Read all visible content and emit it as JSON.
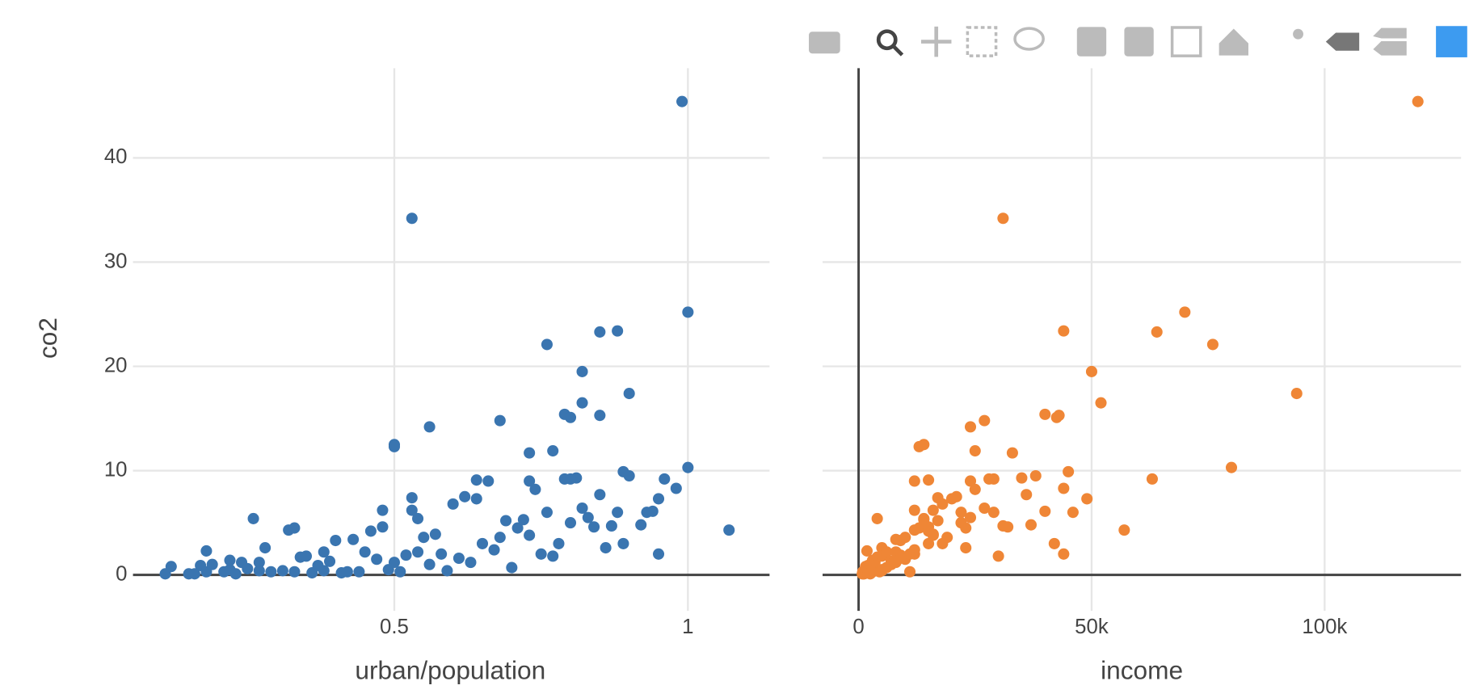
{
  "chart_data": [
    {
      "type": "scatter",
      "x_label": "urban/population",
      "y_label": "co2",
      "color": "#3a75b0",
      "xlim": [
        0.055,
        1.139
      ],
      "ylim": [
        -3.45,
        48.6
      ],
      "xticks": [
        0.5,
        1
      ],
      "yticks": [
        0,
        10,
        20,
        30,
        40
      ],
      "grid": true,
      "x": [
        0.11,
        0.12,
        0.15,
        0.16,
        0.17,
        0.18,
        0.18,
        0.19,
        0.21,
        0.22,
        0.22,
        0.23,
        0.24,
        0.25,
        0.26,
        0.27,
        0.27,
        0.28,
        0.29,
        0.31,
        0.32,
        0.33,
        0.33,
        0.34,
        0.35,
        0.36,
        0.37,
        0.38,
        0.38,
        0.39,
        0.4,
        0.41,
        0.42,
        0.43,
        0.44,
        0.45,
        0.46,
        0.47,
        0.48,
        0.48,
        0.49,
        0.5,
        0.51,
        0.52,
        0.53,
        0.53,
        0.54,
        0.54,
        0.55,
        0.56,
        0.57,
        0.58,
        0.59,
        0.6,
        0.61,
        0.62,
        0.63,
        0.64,
        0.65,
        0.66,
        0.67,
        0.68,
        0.69,
        0.7,
        0.71,
        0.72,
        0.73,
        0.74,
        0.75,
        0.76,
        0.77,
        0.78,
        0.79,
        0.8,
        0.81,
        0.82,
        0.83,
        0.84,
        0.85,
        0.86,
        0.87,
        0.88,
        0.89,
        0.92,
        0.93,
        0.99,
        0.53,
        1.0,
        0.76,
        0.85,
        0.88,
        0.82,
        0.9,
        0.82,
        0.79,
        0.85,
        0.8,
        0.68,
        0.56,
        0.5,
        0.5,
        0.77,
        0.73,
        1.0,
        0.89,
        0.9,
        0.96,
        0.8,
        0.73,
        0.64,
        1.07,
        0.95,
        0.98,
        0.94,
        0.95
      ],
      "values": [
        0.1,
        0.8,
        0.1,
        0.1,
        0.9,
        2.3,
        0.3,
        1.0,
        0.3,
        0.5,
        1.4,
        0.1,
        1.2,
        0.6,
        5.4,
        1.2,
        0.4,
        2.6,
        0.3,
        0.4,
        4.3,
        4.5,
        0.3,
        1.7,
        1.8,
        0.2,
        0.9,
        2.2,
        0.4,
        1.3,
        3.3,
        0.2,
        0.3,
        3.4,
        0.3,
        2.2,
        4.2,
        1.5,
        6.2,
        4.6,
        0.5,
        1.2,
        0.3,
        1.9,
        7.4,
        6.2,
        5.4,
        2.2,
        3.6,
        1.0,
        3.9,
        2.0,
        0.4,
        6.8,
        1.6,
        7.5,
        1.2,
        7.3,
        3.0,
        9.0,
        2.4,
        3.6,
        5.2,
        0.7,
        4.5,
        5.3,
        3.8,
        8.2,
        2.0,
        6.0,
        1.8,
        3.0,
        9.2,
        5.0,
        9.3,
        6.4,
        5.5,
        4.6,
        7.7,
        2.6,
        4.7,
        6.0,
        3.0,
        4.8,
        6.0,
        45.4,
        34.2,
        25.2,
        22.1,
        23.3,
        23.4,
        19.5,
        17.4,
        16.5,
        15.4,
        15.3,
        15.1,
        14.8,
        14.2,
        12.5,
        12.3,
        11.9,
        11.7,
        10.3,
        9.9,
        9.5,
        9.2,
        9.2,
        9.0,
        9.1,
        4.3,
        7.3,
        8.3,
        6.1,
        2.0
      ]
    },
    {
      "type": "scatter",
      "x_label": "income",
      "color": "#ef8636",
      "xlim": [
        -7724,
        129268
      ],
      "ylim": [
        -3.45,
        48.6
      ],
      "xticks": [
        0,
        {
          "value": 50000,
          "label": "50k"
        },
        {
          "value": 100000,
          "label": "100k"
        }
      ],
      "grid": true,
      "x": [
        1000,
        1500,
        800,
        1200,
        2000,
        1800,
        900,
        2500,
        1500,
        2000,
        3000,
        2500,
        3500,
        2000,
        4000,
        3000,
        2000,
        5000,
        1500,
        3000,
        12000,
        13000,
        2500,
        4000,
        5000,
        2000,
        3500,
        6000,
        2000,
        7000,
        9000,
        2500,
        3000,
        8000,
        4500,
        6000,
        15000,
        10000,
        16000,
        15000,
        5000,
        7500,
        11000,
        9000,
        17000,
        12000,
        14000,
        8000,
        10000,
        7000,
        16000,
        12000,
        5000,
        18000,
        9000,
        21000,
        8000,
        20000,
        15000,
        24000,
        12000,
        19000,
        17000,
        6000,
        23000,
        14000,
        16000,
        25000,
        11000,
        22000,
        30000,
        18000,
        28000,
        22000,
        35000,
        27000,
        24000,
        32000,
        36000,
        23000,
        31000,
        29000,
        42000,
        37000,
        46000,
        120000,
        31000,
        70000,
        76000,
        64000,
        44000,
        50000,
        94000,
        52000,
        40000,
        43000,
        42500,
        27000,
        24000,
        14000,
        13000,
        25000,
        33000,
        80000,
        45000,
        38000,
        63000,
        29000,
        12000,
        15000,
        57000,
        49000,
        44000,
        40000,
        44000
      ],
      "values": [
        0.1,
        0.8,
        0.1,
        0.1,
        0.9,
        2.3,
        0.3,
        1.0,
        0.3,
        0.5,
        1.4,
        0.1,
        1.2,
        0.6,
        5.4,
        1.2,
        0.4,
        2.6,
        0.3,
        0.4,
        4.3,
        4.5,
        0.3,
        1.7,
        1.8,
        0.2,
        0.9,
        2.2,
        0.4,
        1.3,
        3.3,
        0.2,
        0.3,
        3.4,
        0.3,
        2.2,
        4.2,
        1.5,
        6.2,
        4.6,
        0.5,
        1.2,
        0.3,
        1.9,
        7.4,
        6.2,
        5.4,
        2.2,
        3.6,
        1.0,
        3.9,
        2.0,
        0.4,
        6.8,
        1.6,
        7.5,
        1.2,
        7.3,
        3.0,
        9.0,
        2.4,
        3.6,
        5.2,
        0.7,
        4.5,
        5.3,
        3.8,
        8.2,
        2.0,
        6.0,
        1.8,
        3.0,
        9.2,
        5.0,
        9.3,
        6.4,
        5.5,
        4.6,
        7.7,
        2.6,
        4.7,
        6.0,
        3.0,
        4.8,
        6.0,
        45.4,
        34.2,
        25.2,
        22.1,
        23.3,
        23.4,
        19.5,
        17.4,
        16.5,
        15.4,
        15.3,
        15.1,
        14.8,
        14.2,
        12.5,
        12.3,
        11.9,
        11.7,
        10.3,
        9.9,
        9.5,
        9.2,
        9.2,
        9.0,
        9.1,
        4.3,
        7.3,
        8.3,
        6.1,
        2.0
      ]
    }
  ]
}
